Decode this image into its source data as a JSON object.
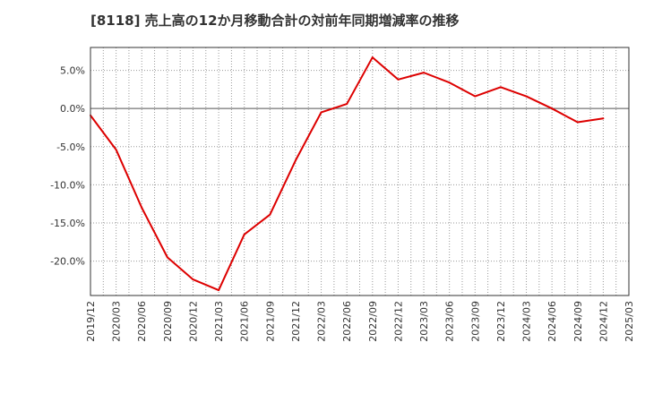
{
  "chart_data": {
    "type": "line",
    "title": "[8118]  売上高の12か月移動合計の対前年同期増減率の推移",
    "xlabel": "",
    "ylabel": "",
    "ylim": [
      -24.5,
      8.0
    ],
    "yticks": [
      5.0,
      0.0,
      -5.0,
      -10.0,
      -15.0,
      -20.0
    ],
    "ytick_labels": [
      "5.0%",
      "0.0%",
      "-5.0%",
      "-10.0%",
      "-15.0%",
      "-20.0%"
    ],
    "categories": [
      "2019/12",
      "2020/03",
      "2020/06",
      "2020/09",
      "2020/12",
      "2021/03",
      "2021/06",
      "2021/09",
      "2021/12",
      "2022/03",
      "2022/06",
      "2022/09",
      "2022/12",
      "2023/03",
      "2023/06",
      "2023/09",
      "2023/12",
      "2024/03",
      "2024/06",
      "2024/09",
      "2024/12",
      "2025/03"
    ],
    "series": [
      {
        "name": "増減率",
        "color": "#dd0000",
        "values": [
          -0.9,
          -5.4,
          -13.0,
          -19.5,
          -22.4,
          -23.8,
          -16.5,
          -13.9,
          -6.8,
          -0.5,
          0.6,
          6.7,
          3.8,
          4.7,
          3.4,
          1.6,
          2.8,
          1.6,
          0.0,
          -1.8,
          -1.3,
          null
        ]
      }
    ],
    "grid": true,
    "legend": "none"
  }
}
